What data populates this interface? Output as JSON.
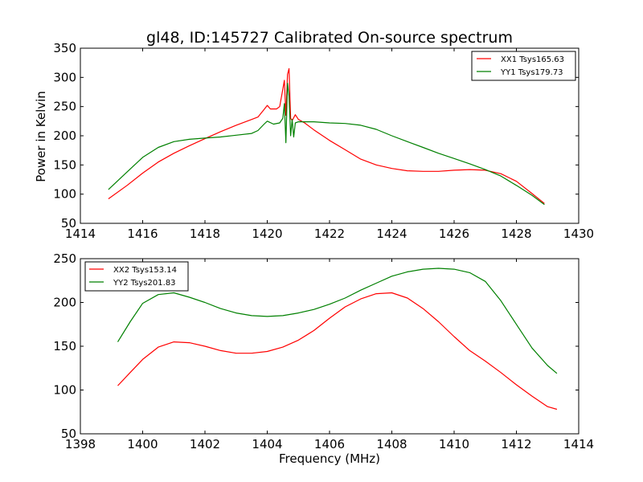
{
  "chart_data": [
    {
      "type": "line",
      "title": "gl48, ID:145727 Calibrated On-source spectrum",
      "xlabel": "",
      "ylabel": "Power in Kelvin",
      "xlim": [
        1414,
        1430
      ],
      "ylim": [
        50,
        350
      ],
      "xticks": [
        1414,
        1416,
        1418,
        1420,
        1422,
        1424,
        1426,
        1428,
        1430
      ],
      "yticks": [
        50,
        100,
        150,
        200,
        250,
        300,
        350
      ],
      "legend_position": "top-right",
      "series": [
        {
          "name": "XX1 Tsys165.63",
          "color": "#ff0000",
          "x": [
            1414.9,
            1415.5,
            1416.0,
            1416.5,
            1417.0,
            1417.5,
            1418.0,
            1418.5,
            1419.0,
            1419.5,
            1419.7,
            1419.9,
            1420.0,
            1420.1,
            1420.3,
            1420.4,
            1420.5,
            1420.55,
            1420.6,
            1420.65,
            1420.7,
            1420.75,
            1420.8,
            1420.9,
            1421.0,
            1421.2,
            1421.5,
            1422.0,
            1422.5,
            1423.0,
            1423.5,
            1424.0,
            1424.5,
            1425.0,
            1425.5,
            1426.0,
            1426.5,
            1427.0,
            1427.5,
            1428.0,
            1428.5,
            1428.9
          ],
          "values": [
            92,
            115,
            136,
            155,
            170,
            183,
            195,
            207,
            218,
            228,
            232,
            245,
            252,
            246,
            246,
            250,
            280,
            295,
            235,
            305,
            315,
            230,
            226,
            236,
            228,
            222,
            210,
            192,
            176,
            160,
            150,
            144,
            140,
            139,
            139,
            141,
            142,
            141,
            135,
            122,
            101,
            84
          ]
        },
        {
          "name": "YY1 Tsys179.73",
          "color": "#008000",
          "x": [
            1414.9,
            1415.5,
            1416.0,
            1416.5,
            1417.0,
            1417.5,
            1418.0,
            1418.5,
            1419.0,
            1419.5,
            1419.7,
            1419.9,
            1420.0,
            1420.2,
            1420.4,
            1420.5,
            1420.55,
            1420.6,
            1420.65,
            1420.7,
            1420.75,
            1420.8,
            1420.85,
            1420.9,
            1421.0,
            1421.5,
            1422.0,
            1422.5,
            1423.0,
            1423.5,
            1424.0,
            1424.5,
            1425.0,
            1425.5,
            1426.0,
            1426.5,
            1427.0,
            1427.5,
            1428.0,
            1428.5,
            1428.9
          ],
          "values": [
            108,
            138,
            163,
            180,
            190,
            194,
            196,
            198,
            201,
            204,
            209,
            220,
            225,
            220,
            222,
            230,
            255,
            188,
            290,
            268,
            200,
            228,
            198,
            222,
            224,
            224,
            222,
            221,
            218,
            211,
            200,
            190,
            180,
            170,
            161,
            152,
            142,
            131,
            115,
            98,
            82
          ]
        }
      ]
    },
    {
      "type": "line",
      "title": "",
      "xlabel": "Frequency (MHz)",
      "ylabel": "",
      "xlim": [
        1398,
        1414
      ],
      "ylim": [
        50,
        250
      ],
      "xticks": [
        1398,
        1400,
        1402,
        1404,
        1406,
        1408,
        1410,
        1412,
        1414
      ],
      "yticks": [
        50,
        100,
        150,
        200,
        250
      ],
      "legend_position": "top-left",
      "series": [
        {
          "name": "XX2 Tsys153.14",
          "color": "#ff0000",
          "x": [
            1399.2,
            1399.6,
            1400.0,
            1400.5,
            1401.0,
            1401.5,
            1402.0,
            1402.5,
            1403.0,
            1403.5,
            1404.0,
            1404.5,
            1405.0,
            1405.5,
            1406.0,
            1406.5,
            1407.0,
            1407.5,
            1408.0,
            1408.5,
            1409.0,
            1409.5,
            1410.0,
            1410.5,
            1411.0,
            1411.5,
            1412.0,
            1412.5,
            1413.0,
            1413.3
          ],
          "values": [
            105,
            120,
            135,
            149,
            155,
            154,
            150,
            145,
            142,
            142,
            144,
            149,
            157,
            168,
            182,
            195,
            204,
            210,
            211,
            205,
            193,
            178,
            161,
            145,
            133,
            120,
            106,
            93,
            81,
            78
          ]
        },
        {
          "name": "YY2 Tsys201.83",
          "color": "#008000",
          "x": [
            1399.2,
            1399.6,
            1400.0,
            1400.5,
            1401.0,
            1401.5,
            1402.0,
            1402.5,
            1403.0,
            1403.5,
            1404.0,
            1404.5,
            1405.0,
            1405.5,
            1406.0,
            1406.5,
            1407.0,
            1407.5,
            1408.0,
            1408.5,
            1409.0,
            1409.5,
            1410.0,
            1410.5,
            1411.0,
            1411.5,
            1412.0,
            1412.5,
            1413.0,
            1413.3
          ],
          "values": [
            155,
            178,
            199,
            209,
            211,
            206,
            200,
            193,
            188,
            185,
            184,
            185,
            188,
            192,
            198,
            205,
            214,
            222,
            230,
            235,
            238,
            239,
            238,
            234,
            224,
            202,
            175,
            148,
            128,
            119
          ]
        }
      ]
    }
  ]
}
